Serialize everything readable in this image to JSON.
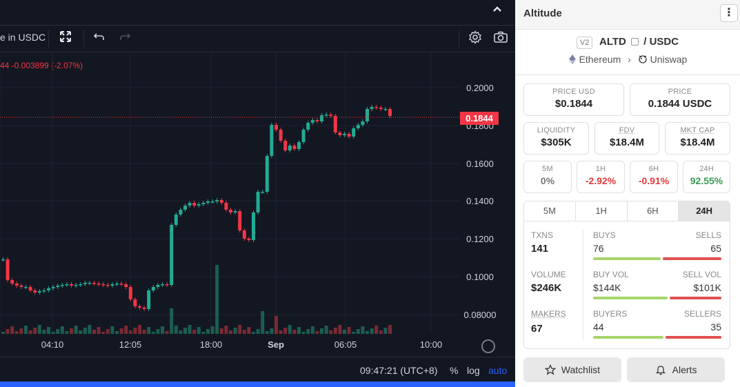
{
  "toolbar": {
    "currency_label": "e in USDC"
  },
  "legend": {
    "text": "44  -0.003899 (-2.07%)"
  },
  "chart": {
    "price_axis": [
      "0.2000",
      "0.1800",
      "0.1600",
      "0.1400",
      "0.1200",
      "0.1000",
      "0.08000"
    ],
    "time_axis": [
      "04:10",
      "12:05",
      "18:00",
      "Sep",
      "06:05",
      "10:00"
    ],
    "current_price_label": "0.1844",
    "colors": {
      "up": "#22ab94",
      "down": "#f23645",
      "bg": "#131722"
    }
  },
  "bottom_bar": {
    "clock": "09:47:21 (UTC+8)",
    "percent": "%",
    "log": "log",
    "auto": "auto"
  },
  "info": {
    "title": "Altitude",
    "version": "V2",
    "base": "ALTD",
    "separator": "/",
    "quote": "USDC",
    "chain": "Ethereum",
    "dex": "Uniswap",
    "price_usd_label": "PRICE USD",
    "price_usd": "$0.1844",
    "price_label": "PRICE",
    "price": "0.1844 USDC",
    "liquidity_label": "LIQUIDITY",
    "liquidity": "$305K",
    "fdv_label": "FDV",
    "fdv": "$18.4M",
    "mcap_label": "MKT CAP",
    "mcap": "$18.4M",
    "changes": [
      {
        "label": "5M",
        "value": "0%"
      },
      {
        "label": "1H",
        "value": "-2.92%"
      },
      {
        "label": "6H",
        "value": "-0.91%"
      },
      {
        "label": "24H",
        "value": "92.55%"
      }
    ],
    "tabs": [
      "5M",
      "1H",
      "6H",
      "24H"
    ],
    "active_tab": "24H",
    "txns_label": "TXNS",
    "txns": "141",
    "buys_label": "BUYS",
    "buys": "76",
    "sells_label": "SELLS",
    "sells": "65",
    "volume_label": "VOLUME",
    "volume": "$246K",
    "buy_vol_label": "BUY VOL",
    "buy_vol": "$144K",
    "sell_vol_label": "SELL VOL",
    "sell_vol": "$101K",
    "makers_label": "MAKERS",
    "makers": "67",
    "buyers_label": "BUYERS",
    "buyers": "44",
    "sellers_label": "SELLERS",
    "sellers": "35",
    "watchlist": "Watchlist",
    "alerts": "Alerts"
  }
}
